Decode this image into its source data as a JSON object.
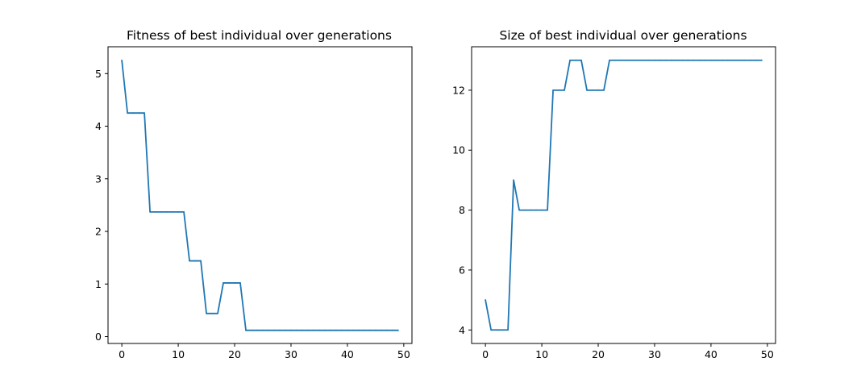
{
  "chart_data": [
    {
      "type": "line",
      "title": "Fitness of best individual over generations",
      "xlabel": "",
      "ylabel": "",
      "xlim": [
        -2.45,
        51.45
      ],
      "ylim": [
        -0.13,
        5.51
      ],
      "xticks": [
        0,
        10,
        20,
        30,
        40,
        50
      ],
      "yticks": [
        0,
        1,
        2,
        3,
        4,
        5
      ],
      "grid": false,
      "color": "#1f77b4",
      "x": [
        0,
        1,
        2,
        3,
        4,
        5,
        6,
        7,
        8,
        9,
        10,
        11,
        12,
        13,
        14,
        15,
        16,
        17,
        18,
        19,
        20,
        21,
        22,
        23,
        24,
        25,
        26,
        27,
        28,
        29,
        30,
        31,
        32,
        33,
        34,
        35,
        36,
        37,
        38,
        39,
        40,
        41,
        42,
        43,
        44,
        45,
        46,
        47,
        48,
        49
      ],
      "y": [
        5.25,
        4.25,
        4.25,
        4.25,
        4.25,
        2.37,
        2.37,
        2.37,
        2.37,
        2.37,
        2.37,
        2.37,
        1.44,
        1.44,
        1.44,
        0.44,
        0.44,
        0.44,
        1.02,
        1.02,
        1.02,
        1.02,
        0.12,
        0.12,
        0.12,
        0.12,
        0.12,
        0.12,
        0.12,
        0.12,
        0.12,
        0.12,
        0.12,
        0.12,
        0.12,
        0.12,
        0.12,
        0.12,
        0.12,
        0.12,
        0.12,
        0.12,
        0.12,
        0.12,
        0.12,
        0.12,
        0.12,
        0.12,
        0.12,
        0.12
      ]
    },
    {
      "type": "line",
      "title": "Size of best individual over generations",
      "xlabel": "",
      "ylabel": "",
      "xlim": [
        -2.45,
        51.45
      ],
      "ylim": [
        3.55,
        13.45
      ],
      "xticks": [
        0,
        10,
        20,
        30,
        40,
        50
      ],
      "yticks": [
        4,
        6,
        8,
        10,
        12
      ],
      "grid": false,
      "color": "#1f77b4",
      "x": [
        0,
        1,
        2,
        3,
        4,
        5,
        6,
        7,
        8,
        9,
        10,
        11,
        12,
        13,
        14,
        15,
        16,
        17,
        18,
        19,
        20,
        21,
        22,
        23,
        24,
        25,
        26,
        27,
        28,
        29,
        30,
        31,
        32,
        33,
        34,
        35,
        36,
        37,
        38,
        39,
        40,
        41,
        42,
        43,
        44,
        45,
        46,
        47,
        48,
        49
      ],
      "y": [
        5,
        4,
        4,
        4,
        4,
        9,
        8,
        8,
        8,
        8,
        8,
        8,
        12,
        12,
        12,
        13,
        13,
        13,
        12,
        12,
        12,
        12,
        13,
        13,
        13,
        13,
        13,
        13,
        13,
        13,
        13,
        13,
        13,
        13,
        13,
        13,
        13,
        13,
        13,
        13,
        13,
        13,
        13,
        13,
        13,
        13,
        13,
        13,
        13,
        13
      ]
    }
  ]
}
